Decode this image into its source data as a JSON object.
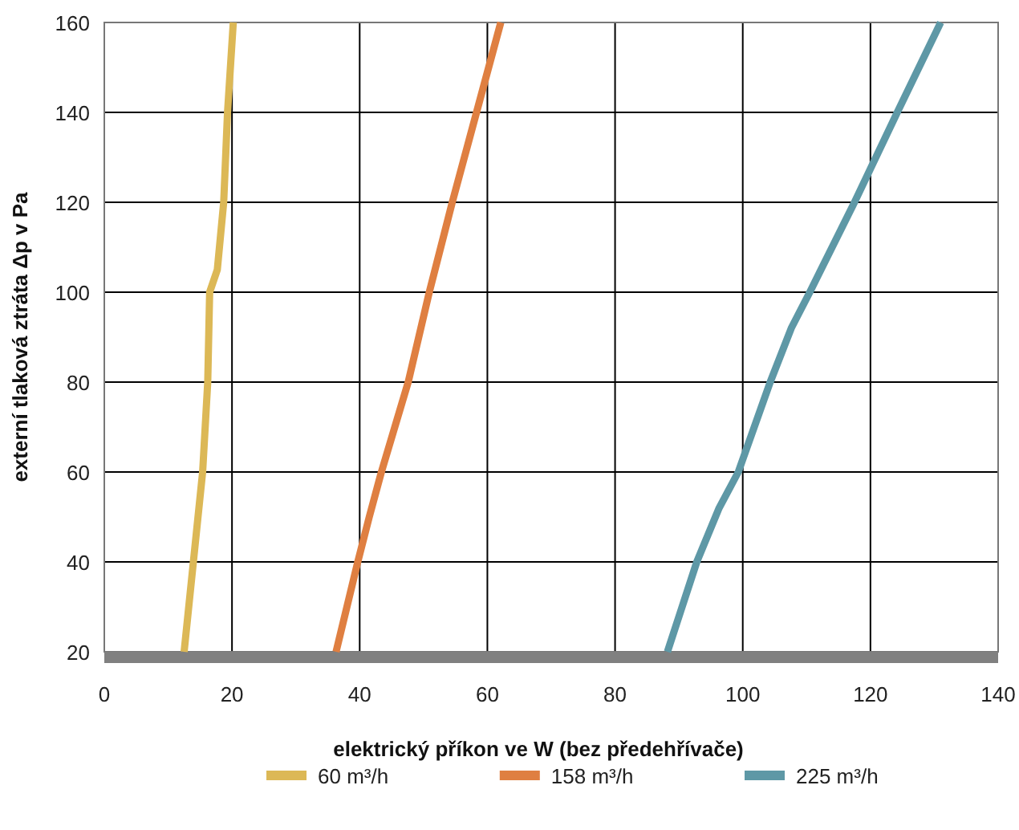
{
  "chart_data": {
    "type": "line",
    "xlabel": "elektrický příkon ve W (bez předehřívače)",
    "ylabel": "externí tlaková ztráta Δp v Pa",
    "xlim": [
      0,
      140
    ],
    "xticks": [
      0,
      20,
      40,
      60,
      80,
      100,
      120,
      140
    ],
    "ylim": [
      20,
      160
    ],
    "yticks": [
      20,
      40,
      60,
      80,
      100,
      120,
      140,
      160
    ],
    "grid": true,
    "legend": "bottom",
    "marker": "none",
    "line_style": "solid",
    "series": [
      {
        "name": "60 m³/h",
        "color": "#dcb856",
        "x": [
          12.5,
          15.4,
          16.2,
          16.5,
          17.7,
          18.7,
          19.3,
          20.2
        ],
        "values": [
          20,
          60,
          80,
          100,
          105,
          120,
          140,
          160
        ]
      },
      {
        "name": "158 m³/h",
        "color": "#df7f41",
        "x": [
          36.3,
          39.7,
          41.5,
          43.4,
          47.6,
          50.9,
          54.5,
          58.3,
          62.1
        ],
        "values": [
          20,
          40,
          50,
          60,
          80,
          100,
          120,
          140,
          160
        ]
      },
      {
        "name": "225 m³/h",
        "color": "#5e98a6",
        "x": [
          88.2,
          92.8,
          96.3,
          99.3,
          104.3,
          107.6,
          110.5,
          117.5,
          124.2,
          131.0
        ],
        "values": [
          20,
          40,
          52,
          60,
          80,
          92,
          100,
          120,
          140,
          160
        ]
      }
    ]
  }
}
